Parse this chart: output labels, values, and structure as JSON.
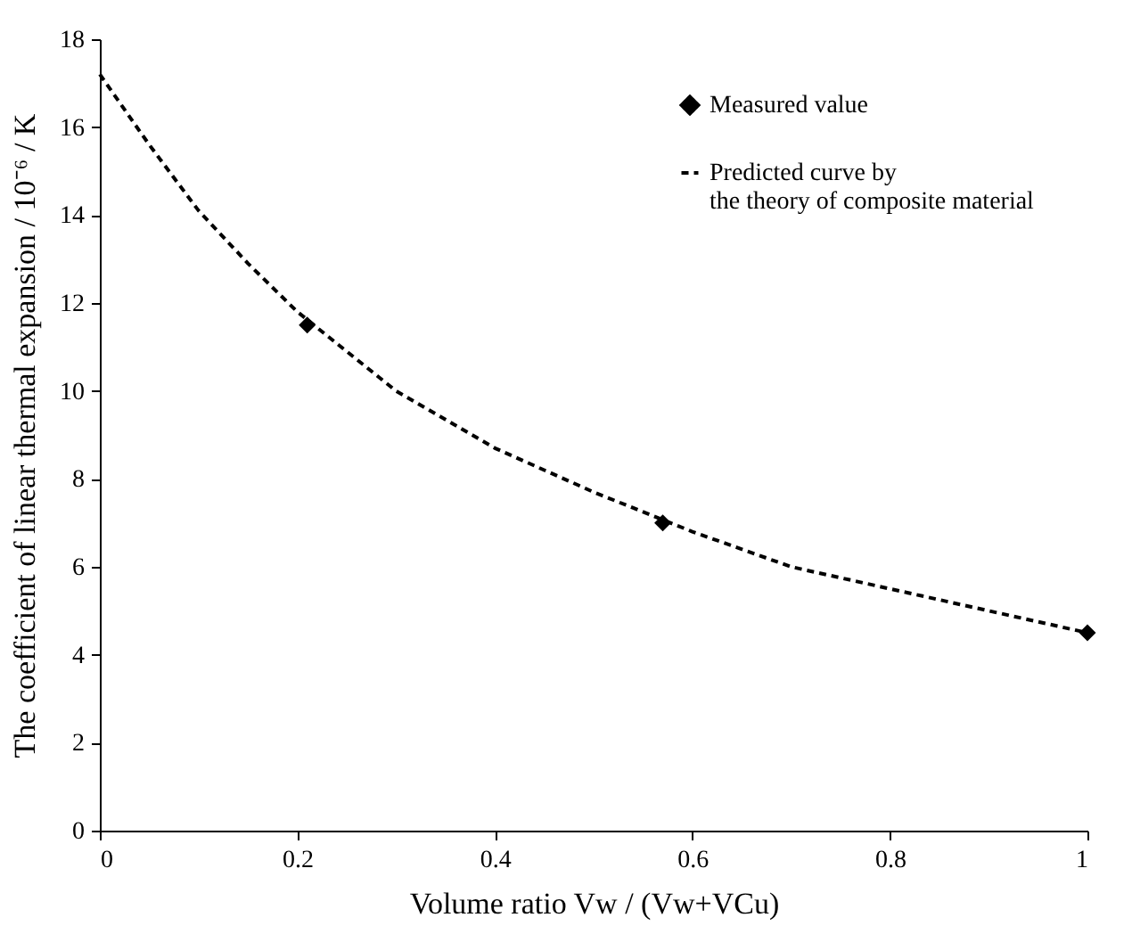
{
  "chart_data": {
    "type": "line",
    "xlabel": "Volume ratio  Vw / (Vw+VCu)",
    "ylabel": "The coefficient of linear thermal expansion / 10⁻⁶ / K",
    "xlim": [
      0,
      1
    ],
    "xticks": [
      0,
      0.2,
      0.4,
      0.6,
      0.8,
      1
    ],
    "ylim": [
      0,
      18
    ],
    "yticks": [
      0,
      2,
      4,
      6,
      8,
      10,
      12,
      14,
      16,
      18
    ],
    "grid": false,
    "legend": "top right",
    "series": [
      {
        "name": "Measured value",
        "type": "scatter",
        "marker": "diamond",
        "color": "#000000",
        "x": [
          0.21,
          0.57,
          1.0
        ],
        "values": [
          11.5,
          7.0,
          4.5
        ]
      },
      {
        "name": "Predicted curve by\nthe theory of composite material",
        "line_style": "dashed",
        "marker": "none",
        "color": "#000000",
        "x": [
          0,
          0.05,
          0.1,
          0.15,
          0.2,
          0.3,
          0.4,
          0.5,
          0.6,
          0.7,
          0.8,
          0.9,
          1.0
        ],
        "values": [
          17.2,
          15.6,
          14.1,
          12.9,
          11.8,
          10.0,
          8.7,
          7.7,
          6.8,
          6.0,
          5.5,
          5.0,
          4.5
        ]
      }
    ]
  }
}
